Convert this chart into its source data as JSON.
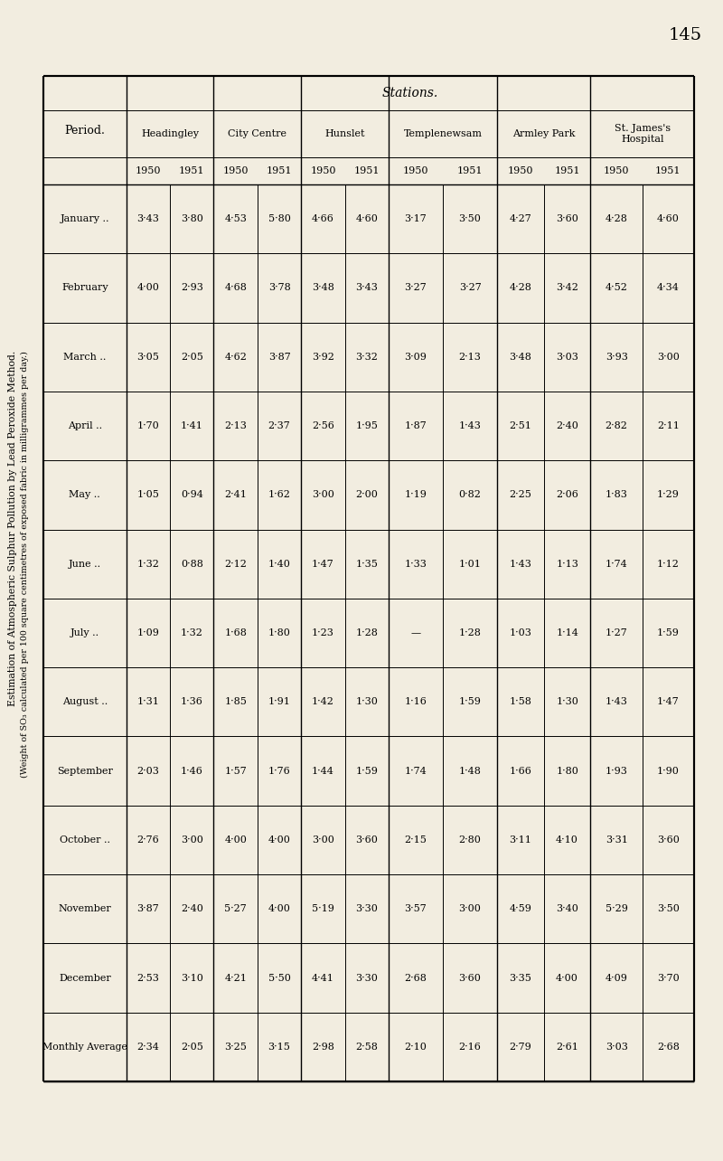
{
  "title_line1": "Estimation of Atmospheric Sulphur Pollution by Lead Peroxide Method.",
  "title_line2": "(Weight of SO₃ calculated per 100 square centimetres of exposed fabric in milligrammes per day.)",
  "page_number": "145",
  "stations_label": "Stations.",
  "periods": [
    "January ..",
    "February",
    "March ..",
    "April ..",
    "May ..",
    "June ..",
    "July ..",
    "August ..",
    "September",
    "October ..",
    "November",
    "December",
    "Monthly Average"
  ],
  "station_names": [
    "Headingley",
    "City Centre",
    "Hunslet",
    "Templenewsam",
    "Armley Park",
    "St. James's\nHospital"
  ],
  "columns": [
    {
      "station": "Headingley",
      "year": "1950",
      "values": [
        "3·43",
        "4·00",
        "3·05",
        "1·70",
        "1·05",
        "1·32",
        "1·09",
        "1·31",
        "2·03",
        "2·76",
        "3·87",
        "2·53",
        "2·34"
      ]
    },
    {
      "station": "Headingley",
      "year": "1951",
      "values": [
        "3·80",
        "2·93",
        "2·05",
        "1·41",
        "0·94",
        "0·88",
        "1·32",
        "1·36",
        "1·46",
        "3·00",
        "2·40",
        "3·10",
        "2·05"
      ]
    },
    {
      "station": "City Centre",
      "year": "1950",
      "values": [
        "4·53",
        "4·68",
        "4·62",
        "2·13",
        "2·41",
        "2·12",
        "1·68",
        "1·85",
        "1·57",
        "4·00",
        "5·27",
        "4·21",
        "3·25"
      ]
    },
    {
      "station": "City Centre",
      "year": "1951",
      "values": [
        "5·80",
        "3·78",
        "3·87",
        "2·37",
        "1·62",
        "1·40",
        "1·80",
        "1·91",
        "1·76",
        "4·00",
        "4·00",
        "5·50",
        "3·15"
      ]
    },
    {
      "station": "Hunslet",
      "year": "1950",
      "values": [
        "4·66",
        "3·48",
        "3·92",
        "2·56",
        "3·00",
        "1·47",
        "1·23",
        "1·42",
        "1·44",
        "3·00",
        "5·19",
        "4·41",
        "2·98"
      ]
    },
    {
      "station": "Hunslet",
      "year": "1951",
      "values": [
        "4·60",
        "3·43",
        "3·32",
        "1·95",
        "2·00",
        "1·35",
        "1·28",
        "1·30",
        "1·59",
        "3·60",
        "3·30",
        "3·30",
        "2·58"
      ]
    },
    {
      "station": "Templenewsam",
      "year": "1950",
      "values": [
        "3·17",
        "3·27",
        "3·09",
        "1·87",
        "1·19",
        "1·33",
        "—",
        "1·16",
        "1·74",
        "2·15",
        "3·57",
        "2·68",
        "2·10"
      ]
    },
    {
      "station": "Templenewsam",
      "year": "1951",
      "values": [
        "3·50",
        "3·27",
        "2·13",
        "1·43",
        "0·82",
        "1·01",
        "1·28",
        "1·59",
        "1·48",
        "2·80",
        "3·00",
        "3·60",
        "2·16"
      ]
    },
    {
      "station": "Armley Park",
      "year": "1950",
      "values": [
        "4·27",
        "4·28",
        "3·48",
        "2·51",
        "2·25",
        "1·43",
        "1·03",
        "1·58",
        "1·66",
        "3·11",
        "4·59",
        "3·35",
        "2·79"
      ]
    },
    {
      "station": "Armley Park",
      "year": "1951",
      "values": [
        "3·60",
        "3·42",
        "3·03",
        "2·40",
        "2·06",
        "1·13",
        "1·14",
        "1·30",
        "1·80",
        "4·10",
        "3·40",
        "4·00",
        "2·61"
      ]
    },
    {
      "station": "St. James's Hospital",
      "year": "1950",
      "values": [
        "4·28",
        "4·52",
        "3·93",
        "2·82",
        "1·83",
        "1·74",
        "1·27",
        "1·43",
        "1·93",
        "3·31",
        "5·29",
        "4·09",
        "3·03"
      ]
    },
    {
      "station": "St. James's Hospital",
      "year": "1951",
      "values": [
        "4·60",
        "4·34",
        "3·00",
        "2·11",
        "1·29",
        "1·12",
        "1·59",
        "1·47",
        "1·90",
        "3·60",
        "3·50",
        "3·70",
        "2·68"
      ]
    }
  ],
  "bg_color": "#f2ede0",
  "table_bg": "#f2ede0"
}
